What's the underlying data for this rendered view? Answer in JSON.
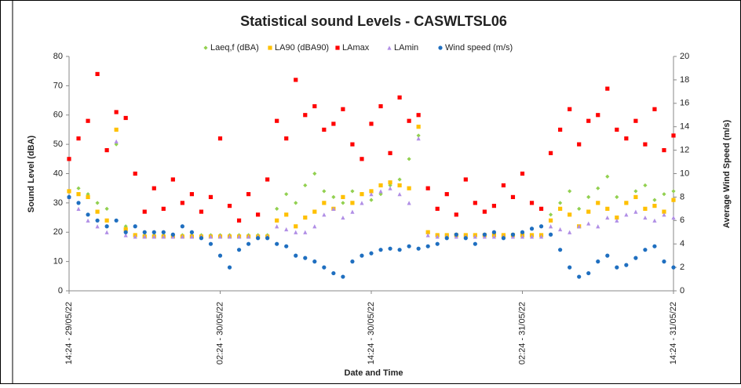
{
  "chart_data": {
    "type": "scatter",
    "title": "Statistical sound Levels - CASWLTSL06",
    "x_label": "Date and Time",
    "y_label": "Sound Level (dBA)",
    "y2_label": "Average Wind Speed (m/s)",
    "legend": "top",
    "grid": false,
    "xlim": [
      0,
      48
    ],
    "xticks": [
      {
        "value": 0,
        "label": "14:24 - 29/05/22"
      },
      {
        "value": 12,
        "label": "02:24 - 30/05/22"
      },
      {
        "value": 24,
        "label": "14:24 - 30/05/22"
      },
      {
        "value": 36,
        "label": "02:24 - 31/05/22"
      },
      {
        "value": 48,
        "label": "14:24 - 31/05/22"
      }
    ],
    "ylim": [
      0,
      80
    ],
    "yticks": [
      0,
      10,
      20,
      30,
      40,
      50,
      60,
      70,
      80
    ],
    "y2lim": [
      0,
      20
    ],
    "y2ticks": [
      0,
      2,
      4,
      6,
      8,
      10,
      12,
      14,
      16,
      18,
      20
    ],
    "x": [
      0,
      0.75,
      1.5,
      2.25,
      3,
      3.75,
      4.5,
      5.25,
      6,
      6.75,
      7.5,
      8.25,
      9,
      9.75,
      10.5,
      11.25,
      12,
      12.75,
      13.5,
      14.25,
      15,
      15.75,
      16.5,
      17.25,
      18,
      18.75,
      19.5,
      20.25,
      21,
      21.75,
      22.5,
      23.25,
      24,
      24.75,
      25.5,
      26.25,
      27,
      27.75,
      28.5,
      29.25,
      30,
      30.75,
      31.5,
      32.25,
      33,
      33.75,
      34.5,
      35.25,
      36,
      36.75,
      37.5,
      38.25,
      39,
      39.75,
      40.5,
      41.25,
      42,
      42.75,
      43.5,
      44.25,
      45,
      45.75,
      46.5,
      47.25,
      48
    ],
    "series": [
      {
        "name": "Laeq,f (dBA)",
        "color": "#92d050",
        "marker": "diamond",
        "values": [
          34,
          35,
          33,
          30,
          28,
          50,
          22,
          19,
          19,
          19,
          19,
          19,
          19,
          19,
          19,
          19,
          19,
          19,
          19,
          19,
          19,
          19,
          28,
          33,
          30,
          36,
          40,
          34,
          32,
          30,
          34,
          33,
          31,
          33,
          36,
          38,
          45,
          53,
          20,
          19,
          19,
          19,
          19,
          19,
          19,
          19,
          19,
          19,
          19,
          19,
          19,
          26,
          30,
          34,
          28,
          32,
          35,
          39,
          32,
          30,
          34,
          36,
          31,
          33,
          34
        ]
      },
      {
        "name": "LA90  (dBA90)",
        "color": "#ffc000",
        "marker": "square",
        "values": [
          34,
          33,
          32,
          27,
          24,
          55,
          21,
          19,
          18.5,
          18.5,
          18.5,
          18.5,
          18.5,
          18.5,
          18.5,
          18.5,
          18.5,
          18.5,
          18.5,
          18.5,
          18.5,
          18.5,
          24,
          26,
          22,
          25,
          27,
          30,
          28,
          32,
          30,
          33,
          34,
          36,
          37,
          36,
          35,
          56,
          20,
          19,
          19,
          19,
          19,
          19,
          19,
          19,
          19,
          19,
          19,
          19,
          19,
          24,
          28,
          26,
          22,
          27,
          30,
          28,
          25,
          30,
          32,
          28,
          29,
          27,
          31
        ]
      },
      {
        "name": "LAmax",
        "color": "#ff0000",
        "marker": "square",
        "values": [
          45,
          52,
          58,
          74,
          48,
          61,
          59,
          40,
          27,
          35,
          28,
          38,
          30,
          33,
          27,
          32,
          52,
          29,
          24,
          33,
          26,
          38,
          58,
          52,
          72,
          60,
          63,
          55,
          57,
          62,
          50,
          45,
          57,
          63,
          47,
          66,
          58,
          60,
          35,
          28,
          33,
          26,
          38,
          30,
          27,
          29,
          36,
          32,
          40,
          30,
          28,
          47,
          55,
          62,
          50,
          58,
          60,
          69,
          55,
          52,
          58,
          50,
          62,
          48,
          53
        ]
      },
      {
        "name": "LAmin",
        "color": "#b18fe6",
        "marker": "triangle",
        "values": [
          32,
          28,
          24,
          22,
          20,
          51,
          19,
          18.5,
          18.5,
          18.5,
          18.5,
          18.5,
          18.5,
          18.5,
          18.5,
          18.5,
          18.5,
          18.5,
          18.5,
          18.5,
          18.5,
          18.5,
          22,
          21,
          20,
          20,
          22,
          26,
          28,
          25,
          27,
          30,
          33,
          34,
          35,
          33,
          30,
          52,
          19,
          18.5,
          18.5,
          18.5,
          18.5,
          18.5,
          18.5,
          18.5,
          18.5,
          18.5,
          18.5,
          18.5,
          18.5,
          22,
          21,
          20,
          22,
          23,
          22,
          25,
          24,
          26,
          27,
          25,
          24,
          26,
          25
        ]
      },
      {
        "name": "Wind speed (m/s)",
        "color": "#1f6fc0",
        "marker": "circle",
        "axis": "y2",
        "values": [
          8,
          7.5,
          6.5,
          6,
          5.5,
          6,
          5,
          5.5,
          5,
          5,
          5,
          4.8,
          5.5,
          5,
          4.5,
          4,
          3,
          2,
          3.5,
          4,
          4.5,
          4.5,
          4,
          3.8,
          3,
          2.8,
          2.5,
          2,
          1.5,
          1.2,
          2.5,
          3,
          3.2,
          3.5,
          3.6,
          3.5,
          3.8,
          3.6,
          3.8,
          4,
          4.5,
          4.8,
          4.5,
          4,
          4.8,
          5,
          4.5,
          4.8,
          5,
          5.3,
          5.5,
          4.8,
          3.5,
          2,
          1.2,
          1.5,
          2.5,
          3,
          2,
          2.2,
          2.8,
          3.5,
          3.8,
          2.5,
          2
        ]
      }
    ]
  }
}
